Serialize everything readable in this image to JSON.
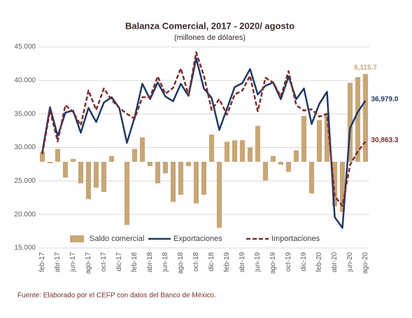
{
  "chart_data": {
    "type": "combo",
    "title": "Balanza Comercial, 2017 - 2020/ agosto",
    "subtitle": "(millones de dólares)",
    "source": "Fuente: Elaborado por el CEFP con datos del Banco de México.",
    "categories": [
      "feb-17",
      null,
      "abr-17",
      null,
      "jun-17",
      null,
      "ago-17",
      null,
      "oct-17",
      null,
      "dic-17",
      null,
      "feb-18",
      null,
      "abr-18",
      null,
      "jun-18",
      null,
      "ago-18",
      null,
      "oct-18",
      null,
      "dic-18",
      null,
      "feb-19",
      null,
      "abr-19",
      null,
      "jun-19",
      null,
      "ago-19",
      null,
      "oct-19",
      null,
      "dic-19",
      null,
      "feb-20",
      null,
      "abr-20",
      null,
      "jun-20",
      null,
      "ago-20"
    ],
    "ylim": [
      15000,
      45000
    ],
    "yticks": [
      {
        "value": 15000,
        "label": "15.000"
      },
      {
        "value": 20000,
        "label": "20.000"
      },
      {
        "value": 25000,
        "label": "25.000"
      },
      {
        "value": 30000,
        "label": "30.000"
      },
      {
        "value": 35000,
        "label": "35.000"
      },
      {
        "value": 40000,
        "label": "40.000"
      },
      {
        "value": 45000,
        "label": "45.000"
      }
    ],
    "y2lim": [
      -6000,
      8000
    ],
    "grid": true,
    "legend": "bottom",
    "series": [
      {
        "name": "Saldo comercial",
        "type": "bar",
        "axis": "y2",
        "color": "#c8a676",
        "values": [
          700,
          -100,
          900,
          -1100,
          200,
          -1500,
          -2600,
          -1800,
          -2100,
          400,
          0,
          -4400,
          900,
          1700,
          -300,
          -1500,
          -800,
          -2800,
          -2300,
          -300,
          -2900,
          -2300,
          1900,
          -4600,
          1400,
          1500,
          1500,
          1000,
          2500,
          -1300,
          400,
          -200,
          -700,
          800,
          3200,
          -2200,
          2900,
          3400,
          -3100,
          -3500,
          5500,
          5900,
          6115.7
        ],
        "value_labels": [
          null,
          null,
          null,
          null,
          null,
          null,
          null,
          null,
          null,
          null,
          null,
          null,
          null,
          null,
          null,
          null,
          null,
          null,
          null,
          null,
          null,
          null,
          null,
          null,
          null,
          null,
          null,
          null,
          null,
          null,
          null,
          null,
          null,
          null,
          null,
          null,
          null,
          null,
          null,
          null,
          null,
          null,
          "6,115.7"
        ]
      },
      {
        "name": "Exportaciones",
        "type": "line",
        "color": "#1f3864",
        "values": [
          29300,
          36000,
          31700,
          35200,
          35500,
          32200,
          35900,
          33800,
          36700,
          37500,
          35900,
          30700,
          34500,
          39500,
          37200,
          39700,
          37600,
          36900,
          39500,
          37700,
          43300,
          38800,
          37400,
          32600,
          35800,
          39000,
          39600,
          41700,
          37900,
          39200,
          39700,
          37200,
          40600,
          37200,
          38800,
          33500,
          36500,
          38300,
          19600,
          18000,
          32900,
          35300,
          36979.0
        ],
        "value_labels": [
          null,
          null,
          null,
          null,
          null,
          null,
          null,
          null,
          null,
          null,
          null,
          null,
          null,
          null,
          null,
          null,
          null,
          null,
          null,
          null,
          null,
          null,
          null,
          null,
          null,
          null,
          null,
          null,
          null,
          null,
          null,
          null,
          null,
          null,
          null,
          null,
          null,
          null,
          null,
          null,
          null,
          null,
          "36,979.0"
        ]
      },
      {
        "name": "Importaciones",
        "type": "line",
        "dashed": true,
        "color": "#7b2c2c",
        "values": [
          29000,
          35500,
          30900,
          36300,
          35300,
          33300,
          38500,
          35600,
          38800,
          37100,
          35900,
          35000,
          34300,
          37500,
          37500,
          40600,
          38000,
          38900,
          41800,
          37800,
          44200,
          40700,
          35600,
          37200,
          34900,
          37900,
          38500,
          40700,
          35400,
          40400,
          39700,
          37600,
          41400,
          36300,
          35500,
          35700,
          34600,
          35000,
          22700,
          21300,
          27400,
          29400,
          30863.3
        ],
        "value_labels": [
          null,
          null,
          null,
          null,
          null,
          null,
          null,
          null,
          null,
          null,
          null,
          null,
          null,
          null,
          null,
          null,
          null,
          null,
          null,
          null,
          null,
          null,
          null,
          null,
          null,
          null,
          null,
          null,
          null,
          null,
          null,
          null,
          null,
          null,
          null,
          null,
          null,
          null,
          null,
          null,
          null,
          null,
          "30,863.3"
        ]
      }
    ]
  }
}
